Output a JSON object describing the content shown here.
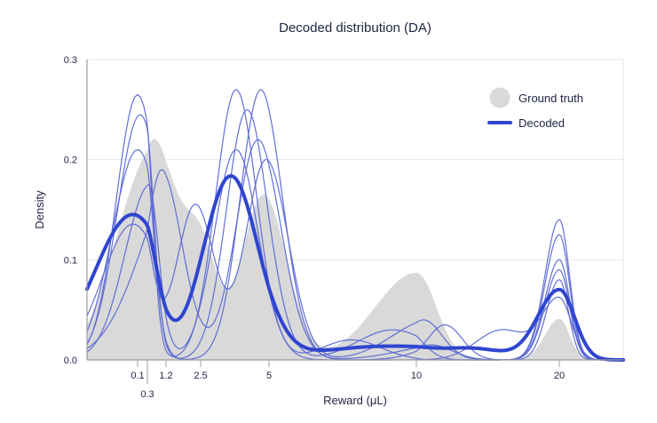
{
  "chart_data": {
    "type": "area",
    "title": "Decoded distribution (DA)",
    "xlabel": "Reward (μL)",
    "ylabel": "Density",
    "ylim": [
      0,
      0.3
    ],
    "yticks": [
      "0.0",
      "0.1",
      "0.2",
      "0.3"
    ],
    "xticks": [
      {
        "label": "0.1",
        "value": 0.1
      },
      {
        "label": "0.3",
        "value": 0.3
      },
      {
        "label": "1.2",
        "value": 1.2
      },
      {
        "label": "2.5",
        "value": 2.5
      },
      {
        "label": "5",
        "value": 5
      },
      {
        "label": "10",
        "value": 10
      },
      {
        "label": "20",
        "value": 20
      }
    ],
    "xscale": "warped reward axis",
    "grid": true,
    "legend": {
      "placement": "top-right",
      "entries": [
        {
          "label": "Ground truth",
          "symbol": "circle",
          "color": "#d9d9d9"
        },
        {
          "label": "Decoded",
          "symbol": "line",
          "color": "#2f45cf"
        }
      ]
    },
    "colors": {
      "ground_truth": "#d9d9d9",
      "decoded": "#2f45cf",
      "samples": "#5b68d3",
      "grid": "#e7e7e7",
      "axis": "#9c9c9c",
      "text": "#1f2342"
    },
    "ground_truth": {
      "name": "Ground truth",
      "components": [
        {
          "center": 0.1,
          "width": 0.6,
          "height": 0.13
        },
        {
          "center": 1.1,
          "width": 0.7,
          "height": 0.165
        },
        {
          "center": 2.5,
          "width": 0.6,
          "height": 0.11
        },
        {
          "center": 4.8,
          "width": 0.8,
          "height": 0.165
        },
        {
          "center": 10.0,
          "width": 1.4,
          "height": 0.087
        },
        {
          "center": 20.0,
          "width": 1.0,
          "height": 0.041
        }
      ]
    },
    "decoded": {
      "name": "Decoded",
      "components": [
        {
          "center": 0.0,
          "width": 0.75,
          "height": 0.145
        },
        {
          "center": 3.6,
          "width": 1.0,
          "height": 0.183
        },
        {
          "center": 8.8,
          "width": 2.2,
          "height": 0.013
        },
        {
          "center": 14.0,
          "width": 2.2,
          "height": 0.011
        },
        {
          "center": 20.0,
          "width": 1.5,
          "height": 0.07
        }
      ]
    },
    "samples": [
      {
        "components": [
          {
            "center": 0.1,
            "width": 0.42,
            "height": 0.265
          },
          {
            "center": 3.8,
            "width": 0.75,
            "height": 0.27
          },
          {
            "center": 7.8,
            "width": 1.0,
            "height": 0.02
          },
          {
            "center": 20.0,
            "width": 1.0,
            "height": 0.14
          }
        ]
      },
      {
        "components": [
          {
            "center": 0.15,
            "width": 0.45,
            "height": 0.245
          },
          {
            "center": 4.2,
            "width": 0.75,
            "height": 0.25
          },
          {
            "center": 9.2,
            "width": 1.2,
            "height": 0.03
          },
          {
            "center": 20.0,
            "width": 1.0,
            "height": 0.125
          }
        ]
      },
      {
        "components": [
          {
            "center": 0.1,
            "width": 0.5,
            "height": 0.21
          },
          {
            "center": 4.7,
            "width": 0.75,
            "height": 0.27
          },
          {
            "center": 12.0,
            "width": 1.2,
            "height": 0.035
          },
          {
            "center": 20.0,
            "width": 1.0,
            "height": 0.1
          }
        ]
      },
      {
        "components": [
          {
            "center": 1.0,
            "width": 0.8,
            "height": 0.19
          },
          {
            "center": 4.6,
            "width": 0.8,
            "height": 0.22
          },
          {
            "center": 11.0,
            "width": 1.5,
            "height": 0.015
          },
          {
            "center": 20.0,
            "width": 0.9,
            "height": 0.08
          }
        ]
      },
      {
        "components": [
          {
            "center": 0.0,
            "width": 0.6,
            "height": 0.135
          },
          {
            "center": 2.3,
            "width": 0.7,
            "height": 0.155
          },
          {
            "center": 4.9,
            "width": 0.75,
            "height": 0.2
          },
          {
            "center": 10.5,
            "width": 1.3,
            "height": 0.04
          },
          {
            "center": 20.0,
            "width": 1.0,
            "height": 0.09
          }
        ]
      },
      {
        "components": [
          {
            "center": 0.35,
            "width": 0.5,
            "height": 0.175
          },
          {
            "center": 3.8,
            "width": 0.8,
            "height": 0.21
          },
          {
            "center": 16.0,
            "width": 1.8,
            "height": 0.03
          },
          {
            "center": 20.0,
            "width": 1.2,
            "height": 0.06
          }
        ]
      }
    ]
  }
}
